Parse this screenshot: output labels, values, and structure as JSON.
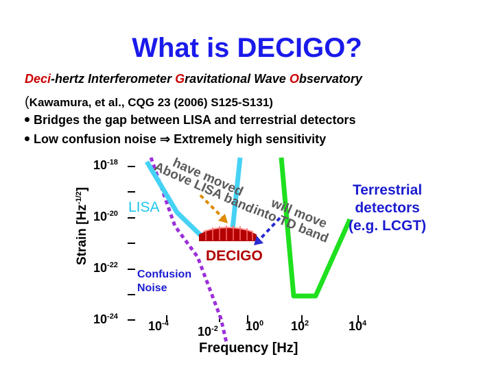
{
  "title": "What is DECIGO?",
  "subtitle": {
    "w1_hl": "Deci",
    "w1_rest": "-hertz Interferometer ",
    "w2_hl": "G",
    "w2_rest": "ravitational Wave ",
    "w3_hl": "O",
    "w3_rest": "bservatory"
  },
  "reference": {
    "paren_open": "(",
    "text": "Kawamura, et al., CQG 23 (2006) S125-S131)"
  },
  "bullets": [
    {
      "text": "Bridges the gap between LISA and terrestrial detectors"
    },
    {
      "before": "Low confusion noise ",
      "arrow": "⇒",
      "after": " Extremely high sensitivity"
    }
  ],
  "chart": {
    "ylabel_base": "Strain [Hz",
    "ylabel_exp": "-1/2",
    "ylabel_close": "]",
    "xlabel": "Frequency [Hz]",
    "yticks": [
      {
        "base": "10",
        "exp": "-18"
      },
      {
        "base": "10",
        "exp": "-20"
      },
      {
        "base": "10",
        "exp": "-22"
      },
      {
        "base": "10",
        "exp": "-24"
      }
    ],
    "xticks": [
      {
        "base": "10",
        "exp": "-4"
      },
      {
        "base": "10",
        "exp": "-2"
      },
      {
        "base": "10",
        "exp": "0"
      },
      {
        "base": "10",
        "exp": "2"
      },
      {
        "base": "10",
        "exp": "4"
      }
    ],
    "labels": {
      "lisa": "LISA",
      "decigo": "DECIGO",
      "confusion_line1": "Confusion",
      "confusion_line2": "Noise",
      "terrestrial_line1": "Terrestrial",
      "terrestrial_line2": "detectors",
      "terrestrial_line3": "(e.g. LCGT)"
    },
    "annotations": {
      "left_line1": "Above LISA band",
      "left_line2": "have moved",
      "right_line1": "will move",
      "right_line2": "into TD band"
    },
    "colors": {
      "lisa": "#46d2f5",
      "terrestrial": "#1fe01f",
      "confusion": "#9b30d9",
      "decigo": "#b40000",
      "arrow_left": "#e08a00",
      "arrow_right": "#2a2ad0"
    }
  }
}
